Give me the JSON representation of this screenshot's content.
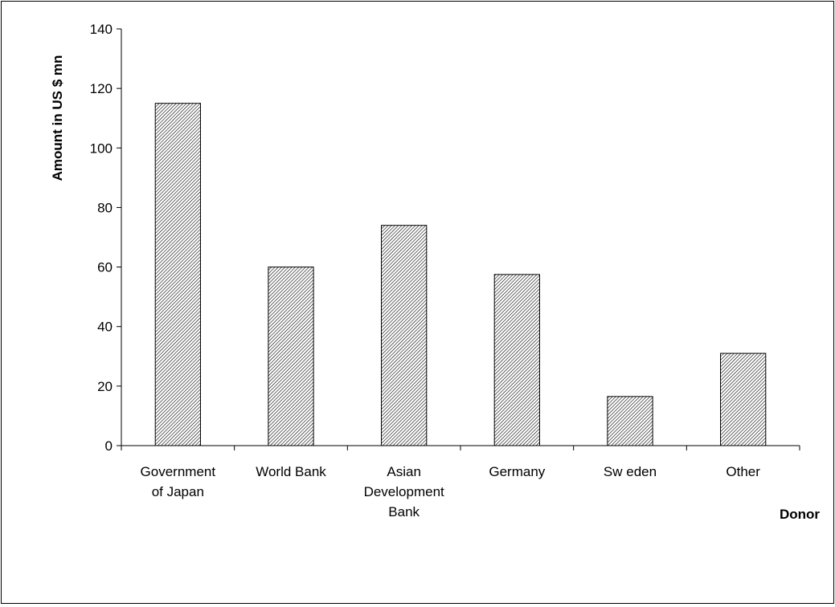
{
  "chart_data": {
    "type": "bar",
    "categories": [
      [
        "Government",
        "of  Japan"
      ],
      [
        "World Bank"
      ],
      [
        "Asian",
        "Development",
        "Bank"
      ],
      [
        "Germany"
      ],
      [
        "Sw eden"
      ],
      [
        "Other"
      ]
    ],
    "values": [
      115,
      60,
      74,
      57.5,
      16.5,
      31
    ],
    "ylabel": "Amount in US $ mn",
    "xlabel": "Donor",
    "ylim": [
      0,
      140
    ],
    "yticks": [
      0,
      20,
      40,
      60,
      80,
      100,
      120,
      140
    ],
    "grid": false,
    "legend": "none",
    "bar_fill": "diagonal-hatch",
    "bar_color": "#000000"
  }
}
